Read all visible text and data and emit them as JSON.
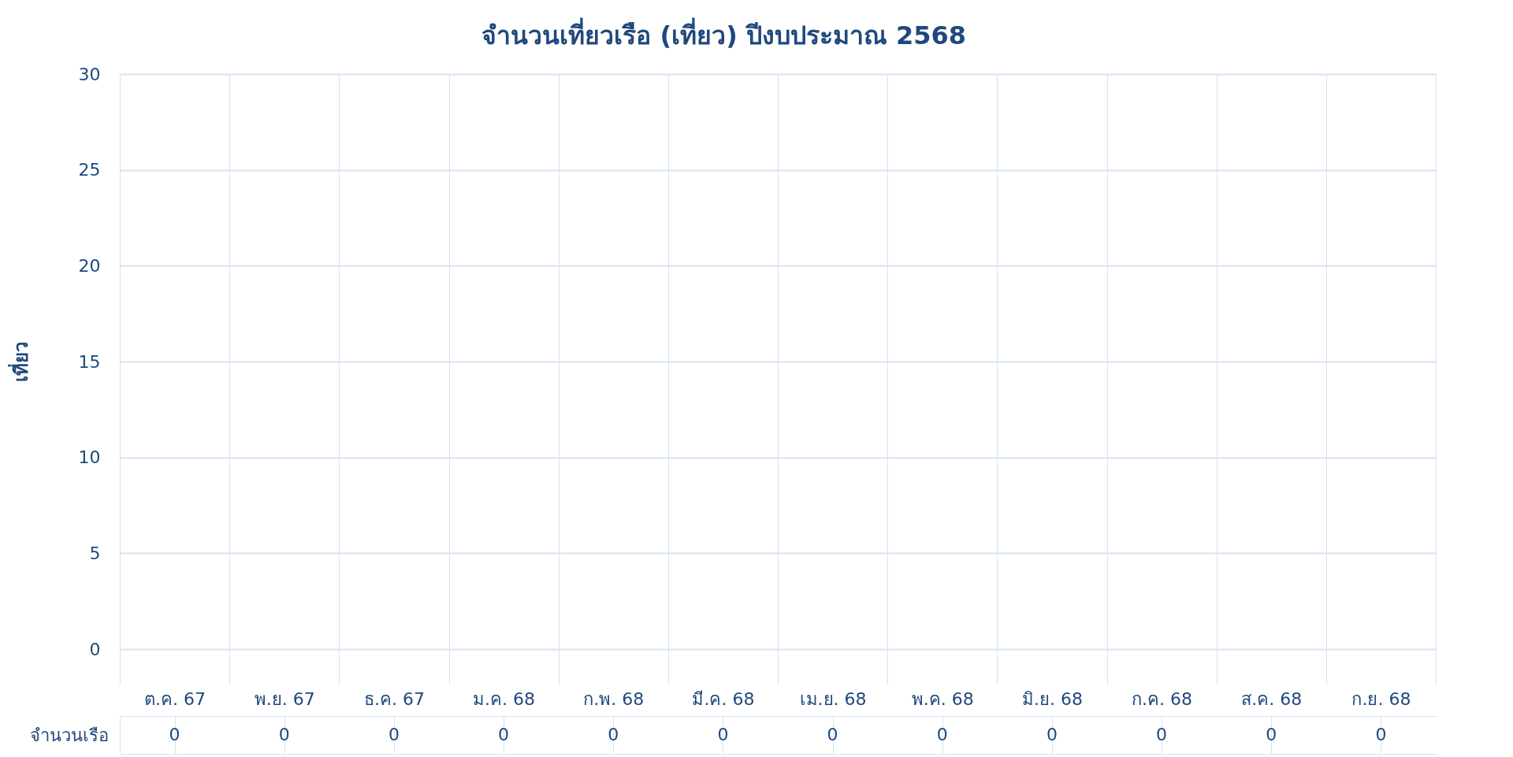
{
  "chart_data": {
    "type": "bar",
    "title": "จำนวนเที่ยวเรือ (เที่ยว) ปีงบประมาณ 2568",
    "ylabel": "เที่ยว",
    "categories": [
      "ต.ค. 67",
      "พ.ย. 67",
      "ธ.ค. 67",
      "ม.ค. 68",
      "ก.พ. 68",
      "มี.ค. 68",
      "เม.ย. 68",
      "พ.ค. 68",
      "มิ.ย. 68",
      "ก.ค. 68",
      "ส.ค. 68",
      "ก.ย. 68"
    ],
    "series": [
      {
        "name": "จำนวนเรือ",
        "values": [
          0,
          0,
          0,
          0,
          0,
          0,
          0,
          0,
          0,
          0,
          0,
          0
        ]
      }
    ],
    "ylim": [
      0,
      30
    ],
    "yticks": [
      0,
      5,
      10,
      15,
      20,
      25,
      30
    ],
    "grid": "y",
    "data_labels": true
  }
}
